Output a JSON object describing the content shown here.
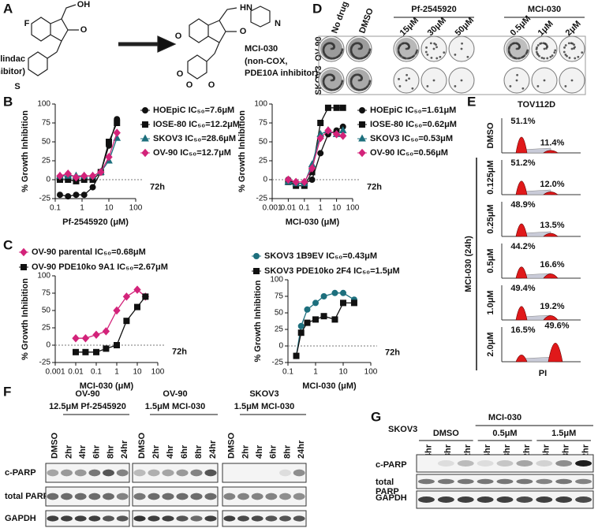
{
  "panel_labels": [
    "A",
    "B",
    "C",
    "D",
    "E",
    "F",
    "G"
  ],
  "panel_a": {
    "drug1": "Sulindac",
    "drug1_note": "(COX inhibitor)",
    "drug2": "MCI-030",
    "drug2_note": [
      "(non-COX,",
      "PDE10A inhibitor)"
    ],
    "atoms1": [
      "F",
      "OH",
      "O",
      "S"
    ],
    "atoms2": [
      "O",
      "O",
      "HN",
      "N",
      "O",
      "O",
      "O"
    ]
  },
  "panel_d": {
    "columns": [
      "No drug",
      "DMSO"
    ],
    "groups": [
      {
        "name": "Pf-2545920",
        "doses": [
          "15μM",
          "30μM",
          "50μM"
        ]
      },
      {
        "name": "MCI-030",
        "doses": [
          "0.5μM",
          "1μM",
          "2μM"
        ]
      }
    ],
    "rows": [
      "OV-90",
      "SKOV3"
    ]
  },
  "chart_data": [
    {
      "type": "line",
      "x_label": "Pf-2545920 (μM)",
      "y_label": "% Growth Inhibition",
      "annotation": "72h",
      "log_x": true,
      "legend": "right",
      "x": [
        0.15,
        0.3,
        0.6,
        1.2,
        2.5,
        5,
        10,
        20
      ],
      "xlim": [
        0.1,
        100
      ],
      "xticks": [
        0.1,
        1,
        10,
        100
      ],
      "ylim": [
        -25,
        100
      ],
      "yticks": [
        -25,
        0,
        25,
        50,
        75,
        100
      ],
      "series": [
        {
          "name": "HOEpiC IC₅₀=7.6μM",
          "color": "#111111",
          "marker": "circle",
          "values": [
            -20,
            -22,
            -20,
            -20,
            -10,
            10,
            45,
            80
          ]
        },
        {
          "name": "IOSE-80 IC₅₀=12.2μM",
          "color": "#111111",
          "marker": "square",
          "values": [
            0,
            0,
            -2,
            0,
            0,
            10,
            50,
            75
          ]
        },
        {
          "name": "SKOV3 IC₅₀=28.6μM",
          "color": "#1d6f7d",
          "marker": "triangle",
          "values": [
            5,
            5,
            5,
            5,
            5,
            10,
            25,
            55
          ]
        },
        {
          "name": "OV-90 IC₅₀=12.7μM",
          "color": "#d3237a",
          "marker": "diamond",
          "values": [
            5,
            8,
            3,
            5,
            5,
            10,
            30,
            62
          ]
        }
      ]
    },
    {
      "type": "line",
      "x_label": "MCI-030 (μM)",
      "y_label": "% Growth Inhibition",
      "annotation": "72h",
      "log_x": true,
      "legend": "right",
      "x": [
        0.01,
        0.03,
        0.1,
        0.3,
        1,
        3,
        10,
        25
      ],
      "xlim": [
        0.001,
        100
      ],
      "xticks": [
        0.001,
        0.01,
        0.1,
        1,
        10,
        100
      ],
      "ylim": [
        -25,
        100
      ],
      "yticks": [
        -25,
        0,
        25,
        50,
        75,
        100
      ],
      "series": [
        {
          "name": "HOEpiC IC₅₀=1.61μM",
          "color": "#111111",
          "marker": "circle",
          "values": [
            0,
            -5,
            -5,
            0,
            35,
            60,
            65,
            70
          ]
        },
        {
          "name": "IOSE-80 IC₅₀=0.62μM",
          "color": "#111111",
          "marker": "square",
          "values": [
            -3,
            -8,
            -8,
            10,
            75,
            95,
            95,
            95
          ]
        },
        {
          "name": "SKOV3 IC₅₀=0.53μM",
          "color": "#1d6f7d",
          "marker": "triangle",
          "values": [
            -3,
            -5,
            -5,
            20,
            60,
            65,
            60,
            65
          ]
        },
        {
          "name": "OV-90 IC₅₀=0.56μM",
          "color": "#d3237a",
          "marker": "diamond",
          "values": [
            0,
            -3,
            -3,
            15,
            55,
            65,
            60,
            58
          ]
        }
      ]
    },
    {
      "type": "line",
      "x_label": "MCI-030 (μM)",
      "y_label": "% Growth Inhibition",
      "annotation": "72h",
      "log_x": true,
      "legend": "top",
      "x": [
        0.01,
        0.03,
        0.1,
        0.3,
        1,
        3,
        10,
        25
      ],
      "xlim": [
        0.001,
        100
      ],
      "xticks": [
        0.001,
        0.01,
        0.1,
        1,
        10,
        100
      ],
      "ylim": [
        -25,
        100
      ],
      "yticks": [
        -25,
        0,
        25,
        50,
        75,
        100
      ],
      "series": [
        {
          "name": "OV-90 parental IC₅₀=0.68μM",
          "color": "#d3237a",
          "marker": "diamond",
          "values": [
            10,
            10,
            15,
            20,
            50,
            70,
            80,
            70
          ]
        },
        {
          "name": "OV-90 PDE10ko 9A1 IC₅₀=2.67μM",
          "color": "#111111",
          "marker": "square",
          "values": [
            -10,
            -10,
            -10,
            -5,
            0,
            35,
            55,
            70
          ]
        }
      ]
    },
    {
      "type": "line",
      "x_label": "MCI-030 (μM)",
      "y_label": "% Growth Inhibition",
      "annotation": "72h",
      "log_x": true,
      "legend": "top",
      "x": [
        0.2,
        0.3,
        0.5,
        1,
        2,
        5,
        10,
        25
      ],
      "xlim": [
        0.1,
        100
      ],
      "xticks": [
        0.1,
        1,
        10,
        100
      ],
      "ylim": [
        -25,
        100
      ],
      "yticks": [
        -25,
        0,
        25,
        50,
        75,
        100
      ],
      "series": [
        {
          "name": "SKOV3 1B9EV IC₅₀=0.43μM",
          "color": "#1d6f7d",
          "marker": "circle",
          "values": [
            -15,
            30,
            55,
            65,
            75,
            80,
            80,
            70
          ]
        },
        {
          "name": "SKOV3 PDE10ko 2F4 IC₅₀=1.5μM",
          "color": "#111111",
          "marker": "square",
          "values": [
            -15,
            20,
            35,
            40,
            45,
            40,
            65,
            65
          ]
        }
      ]
    }
  ],
  "panel_e": {
    "title": "TOV112D",
    "axis_label": "MCI-030 (24h)",
    "x_label": "PI",
    "rows": [
      {
        "label": "DMSO",
        "g1": "51.1%",
        "g2": "11.4%"
      },
      {
        "label": "0.125μM",
        "g1": "51.2%",
        "g2": "12.0%"
      },
      {
        "label": "0.25μM",
        "g1": "48.9%",
        "g2": "13.5%"
      },
      {
        "label": "0.5μM",
        "g1": "44.2%",
        "g2": "16.6%"
      },
      {
        "label": "1.0μM",
        "g1": "49.4%",
        "g2": "19.2%"
      },
      {
        "label": "2.0μM",
        "g1": "16.5%",
        "g2": "49.6%"
      }
    ]
  },
  "panel_f": {
    "groups": [
      {
        "cell": "OV-90",
        "treatment": "12.5μM Pf-2545920"
      },
      {
        "cell": "OV-90",
        "treatment": "1.5μM MCI-030"
      },
      {
        "cell": "SKOV3",
        "treatment": "1.5μM MCI-030"
      }
    ],
    "lanes": [
      "DMSO",
      "2hr",
      "4hr",
      "6hr",
      "8hr",
      "24hr"
    ],
    "rows": [
      "c-PARP",
      "total PARP",
      "GAPDH"
    ]
  },
  "panel_g": {
    "cell": "SKOV3",
    "drug": "MCI-030",
    "groups": [
      "DMSO",
      "0.5μM",
      "1.5μM"
    ],
    "lanes": [
      "24hr",
      "48hr",
      "72hr"
    ],
    "rows": [
      "c-PARP",
      "total",
      "PARP",
      "GAPDH"
    ]
  }
}
